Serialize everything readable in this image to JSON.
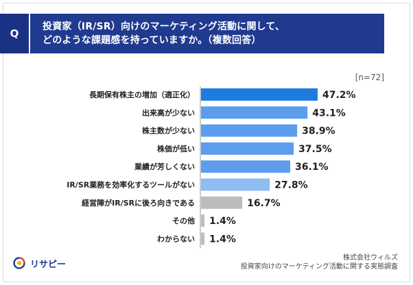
{
  "header": {
    "q_label": "Q",
    "question_line1": "投資家（IR/SR）向けのマーケティング活動に関して、",
    "question_line2": "どのような課題感を持っていますか。（複数回答）"
  },
  "chart_data": {
    "type": "bar",
    "orientation": "horizontal",
    "sample_note": "[n=72]",
    "categories": [
      "長期保有株主の増加（適正化）",
      "出来高が少ない",
      "株主数が少ない",
      "株価が低い",
      "業績が芳しくない",
      "IR/SR業務を効率化するツールがない",
      "経営陣がIR/SRに後ろ向きである",
      "その他",
      "わからない"
    ],
    "values": [
      47.2,
      43.1,
      38.9,
      37.5,
      36.1,
      27.8,
      16.7,
      1.4,
      1.4
    ],
    "value_labels": [
      "47.2%",
      "43.1%",
      "38.9%",
      "37.5%",
      "36.1%",
      "27.8%",
      "16.7%",
      "1.4%",
      "1.4%"
    ],
    "xlim": [
      0,
      50
    ],
    "colors": {
      "top": "#1f7be0",
      "main": "#5c9ded",
      "light": "#8fbdf2",
      "gray": "#bdbdbd"
    },
    "color_keys": [
      "top",
      "main",
      "main",
      "main",
      "main",
      "light",
      "gray",
      "gray",
      "gray"
    ]
  },
  "footer": {
    "brand": "リサピー",
    "company": "株式会社ウィルズ",
    "survey": "投資家向けのマーケティング活動に関する実態調査"
  }
}
